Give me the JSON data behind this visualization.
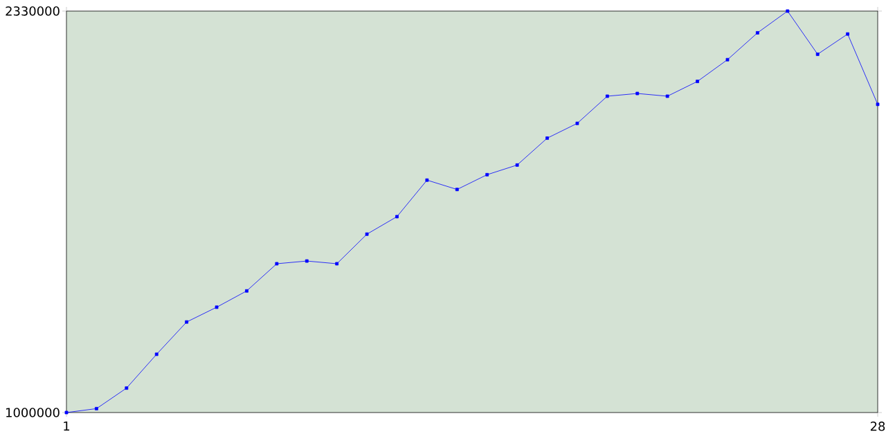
{
  "chart_data": {
    "type": "line",
    "x": [
      1,
      2,
      3,
      4,
      5,
      6,
      7,
      8,
      9,
      10,
      11,
      12,
      13,
      14,
      15,
      16,
      17,
      18,
      19,
      20,
      21,
      22,
      23,
      24,
      25,
      26,
      27,
      28
    ],
    "series": [
      {
        "color": "#0000ff",
        "values": [
          1000000,
          1013000,
          1081000,
          1193000,
          1300000,
          1349000,
          1403000,
          1493000,
          1502000,
          1493000,
          1591000,
          1649000,
          1770000,
          1739000,
          1788000,
          1820000,
          1909000,
          1958000,
          2048000,
          2057000,
          2048000,
          2097000,
          2169000,
          2258000,
          2330000,
          2187000,
          2254000,
          2021000
        ]
      }
    ],
    "xlim": [
      1,
      28
    ],
    "xticks": [
      1,
      28
    ],
    "ylim": [
      1000000,
      2330000
    ],
    "yticks": [
      1000000,
      2330000
    ],
    "marker": "square",
    "line_style": "solid",
    "grid": false
  }
}
